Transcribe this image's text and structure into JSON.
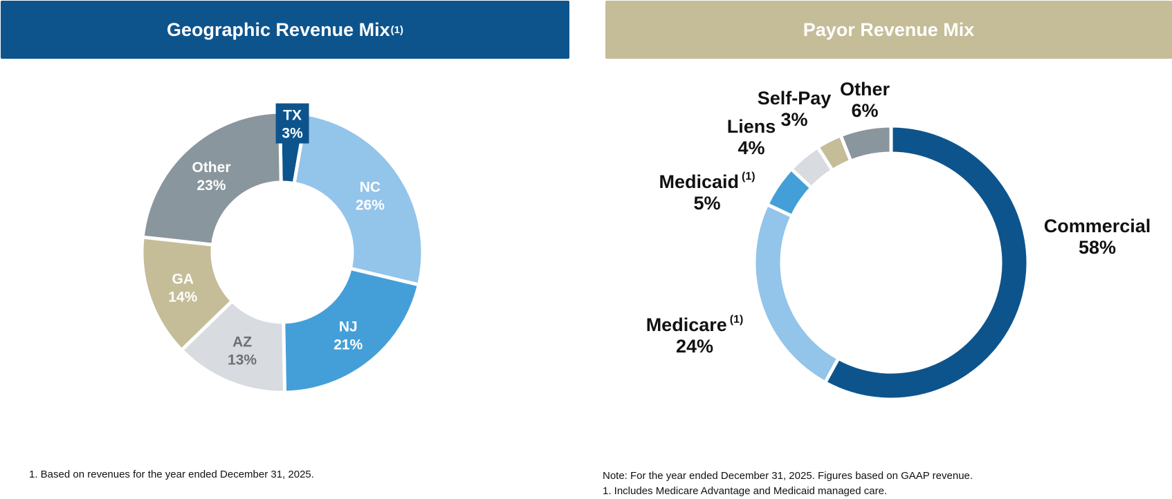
{
  "colors": {
    "navy": "#0d548d",
    "tan": "#c4bd98",
    "light_blue": "#93c4ea",
    "mid_blue": "#449fd8",
    "light_gray": "#d8dbdf",
    "slate": "#8a969d"
  },
  "geo_header": {
    "title": "Geographic Revenue Mix",
    "sup": "(1)"
  },
  "payor_header": {
    "title": "Payor Revenue Mix"
  },
  "chart_data": [
    {
      "type": "pie",
      "variant": "donut",
      "title": "Geographic Revenue Mix",
      "title_sup": "(1)",
      "slices": [
        {
          "label": "TX",
          "value": 3,
          "value_label": "3%",
          "color": "#0d548d",
          "text_color": "#ffffff"
        },
        {
          "label": "NC",
          "value": 26,
          "value_label": "26%",
          "color": "#93c4ea",
          "text_color": "#ffffff"
        },
        {
          "label": "NJ",
          "value": 21,
          "value_label": "21%",
          "color": "#449fd8",
          "text_color": "#ffffff"
        },
        {
          "label": "AZ",
          "value": 13,
          "value_label": "13%",
          "color": "#d8dbdf",
          "text_color": "#6c7177"
        },
        {
          "label": "GA",
          "value": 14,
          "value_label": "14%",
          "color": "#c4bd98",
          "text_color": "#ffffff"
        },
        {
          "label": "Other",
          "value": 23,
          "value_label": "23%",
          "color": "#8a969d",
          "text_color": "#ffffff"
        }
      ]
    },
    {
      "type": "pie",
      "variant": "donut",
      "title": "Payor Revenue Mix",
      "slices": [
        {
          "label": "Commercial",
          "value": 58,
          "value_label": "58%",
          "color": "#0d548d",
          "sup": ""
        },
        {
          "label": "Medicare",
          "value": 24,
          "value_label": "24%",
          "color": "#93c4ea",
          "sup": "(1)"
        },
        {
          "label": "Medicaid",
          "value": 5,
          "value_label": "5%",
          "color": "#449fd8",
          "sup": "(1)"
        },
        {
          "label": "Liens",
          "value": 4,
          "value_label": "4%",
          "color": "#d8dbdf",
          "sup": ""
        },
        {
          "label": "Self-Pay",
          "value": 3,
          "value_label": "3%",
          "color": "#c4bd98",
          "sup": ""
        },
        {
          "label": "Other",
          "value": 6,
          "value_label": "6%",
          "color": "#8a969d",
          "sup": ""
        }
      ]
    }
  ],
  "footnotes": {
    "left": "1.  Based on revenues for the year ended December 31, 2025.",
    "right_note": "Note: For the year ended December 31, 2025. Figures based on GAAP revenue.",
    "right_1": "1.  Includes Medicare Advantage and Medicaid managed care."
  }
}
